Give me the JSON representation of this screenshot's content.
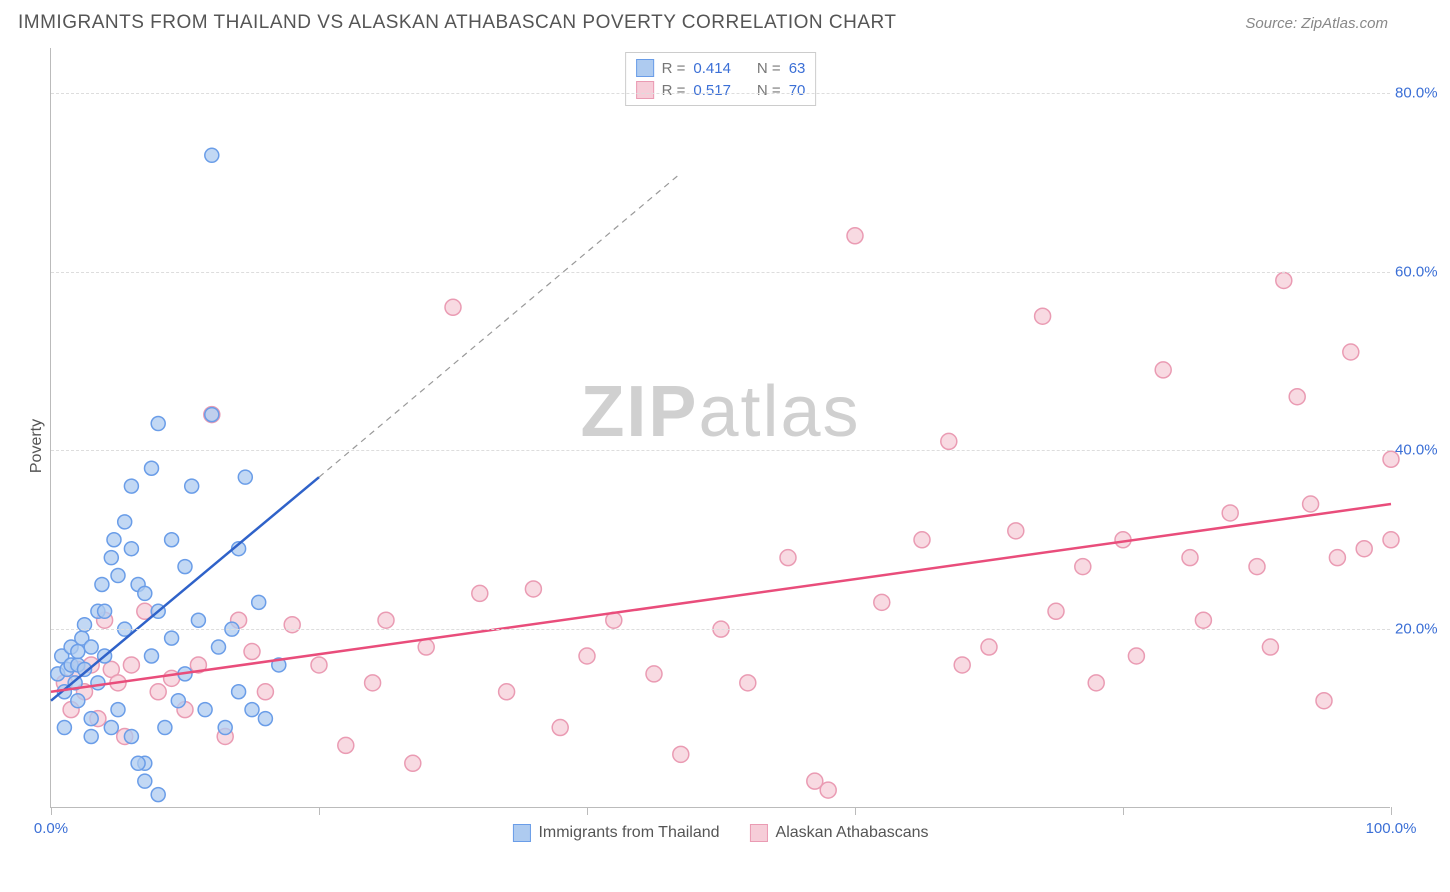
{
  "header": {
    "title": "IMMIGRANTS FROM THAILAND VS ALASKAN ATHABASCAN POVERTY CORRELATION CHART",
    "source_prefix": "Source: ",
    "source_name": "ZipAtlas.com"
  },
  "chart": {
    "type": "scatter",
    "ylabel": "Poverty",
    "watermark": "ZIPatlas",
    "background_color": "#ffffff",
    "grid_color": "#dddddd",
    "axis_color": "#bbbbbb",
    "xlim": [
      0,
      100
    ],
    "ylim": [
      0,
      85
    ],
    "xticks": [
      0,
      20,
      40,
      60,
      80,
      100
    ],
    "xtick_labels": {
      "0": "0.0%",
      "100": "100.0%"
    },
    "yticks": [
      20,
      40,
      60,
      80
    ],
    "ytick_labels": {
      "20": "20.0%",
      "40": "40.0%",
      "60": "60.0%",
      "80": "80.0%"
    },
    "series": [
      {
        "name": "Immigrants from Thailand",
        "color_fill": "#aecbf0",
        "color_stroke": "#6a9de8",
        "trend_color": "#2f62c9",
        "R": "0.414",
        "N": "63",
        "marker_radius": 7,
        "trend": {
          "x1": 0,
          "y1": 12,
          "x2": 20,
          "y2": 37,
          "ext_x2": 47,
          "ext_y2": 71
        },
        "points": [
          [
            0.5,
            15
          ],
          [
            0.8,
            17
          ],
          [
            1,
            13
          ],
          [
            1,
            9
          ],
          [
            1.2,
            15.5
          ],
          [
            1.5,
            16
          ],
          [
            1.5,
            18
          ],
          [
            1.8,
            14
          ],
          [
            2,
            16
          ],
          [
            2,
            17.5
          ],
          [
            2,
            12
          ],
          [
            2.3,
            19
          ],
          [
            2.5,
            15.5
          ],
          [
            2.5,
            20.5
          ],
          [
            3,
            10
          ],
          [
            3,
            8
          ],
          [
            3,
            18
          ],
          [
            3.5,
            22
          ],
          [
            3.5,
            14
          ],
          [
            3.8,
            25
          ],
          [
            4,
            22
          ],
          [
            4,
            17
          ],
          [
            4.5,
            28
          ],
          [
            4.5,
            9
          ],
          [
            4.7,
            30
          ],
          [
            5,
            26
          ],
          [
            5,
            11
          ],
          [
            5.5,
            20
          ],
          [
            5.5,
            32
          ],
          [
            6,
            36
          ],
          [
            6,
            29
          ],
          [
            6,
            8
          ],
          [
            6.5,
            25
          ],
          [
            7,
            24
          ],
          [
            7,
            5
          ],
          [
            7.5,
            38
          ],
          [
            7.5,
            17
          ],
          [
            8,
            43
          ],
          [
            8,
            22
          ],
          [
            8.5,
            9
          ],
          [
            9,
            19
          ],
          [
            9,
            30
          ],
          [
            9.5,
            12
          ],
          [
            10,
            27
          ],
          [
            10,
            15
          ],
          [
            10.5,
            36
          ],
          [
            11,
            21
          ],
          [
            11.5,
            11
          ],
          [
            12,
            44
          ],
          [
            12,
            73
          ],
          [
            12.5,
            18
          ],
          [
            13,
            9
          ],
          [
            13.5,
            20
          ],
          [
            14,
            29
          ],
          [
            14,
            13
          ],
          [
            14.5,
            37
          ],
          [
            15,
            11
          ],
          [
            15.5,
            23
          ],
          [
            16,
            10
          ],
          [
            17,
            16
          ],
          [
            7,
            3
          ],
          [
            8,
            1.5
          ],
          [
            6.5,
            5
          ]
        ]
      },
      {
        "name": "Alaskan Athabascans",
        "color_fill": "#f6cdd8",
        "color_stroke": "#ea9bb3",
        "trend_color": "#e94d7b",
        "R": "0.517",
        "N": "70",
        "marker_radius": 8,
        "trend": {
          "x1": 0,
          "y1": 13,
          "x2": 100,
          "y2": 34
        },
        "points": [
          [
            1,
            14
          ],
          [
            1.5,
            11
          ],
          [
            2,
            15.5
          ],
          [
            2.5,
            13
          ],
          [
            3,
            16
          ],
          [
            3.5,
            10
          ],
          [
            4,
            21
          ],
          [
            4.5,
            15.5
          ],
          [
            5,
            14
          ],
          [
            5.5,
            8
          ],
          [
            6,
            16
          ],
          [
            7,
            22
          ],
          [
            8,
            13
          ],
          [
            9,
            14.5
          ],
          [
            10,
            11
          ],
          [
            11,
            16
          ],
          [
            12,
            44
          ],
          [
            13,
            8
          ],
          [
            14,
            21
          ],
          [
            15,
            17.5
          ],
          [
            16,
            13
          ],
          [
            18,
            20.5
          ],
          [
            20,
            16
          ],
          [
            22,
            7
          ],
          [
            24,
            14
          ],
          [
            25,
            21
          ],
          [
            27,
            5
          ],
          [
            28,
            18
          ],
          [
            30,
            56
          ],
          [
            32,
            24
          ],
          [
            34,
            13
          ],
          [
            36,
            24.5
          ],
          [
            38,
            9
          ],
          [
            40,
            17
          ],
          [
            42,
            21
          ],
          [
            45,
            15
          ],
          [
            47,
            6
          ],
          [
            50,
            20
          ],
          [
            52,
            14
          ],
          [
            55,
            28
          ],
          [
            57,
            3
          ],
          [
            58,
            2
          ],
          [
            60,
            64
          ],
          [
            62,
            23
          ],
          [
            65,
            30
          ],
          [
            67,
            41
          ],
          [
            68,
            16
          ],
          [
            70,
            18
          ],
          [
            72,
            31
          ],
          [
            74,
            55
          ],
          [
            75,
            22
          ],
          [
            77,
            27
          ],
          [
            78,
            14
          ],
          [
            80,
            30
          ],
          [
            81,
            17
          ],
          [
            83,
            49
          ],
          [
            85,
            28
          ],
          [
            86,
            21
          ],
          [
            88,
            33
          ],
          [
            90,
            27
          ],
          [
            91,
            18
          ],
          [
            92,
            59
          ],
          [
            93,
            46
          ],
          [
            94,
            34
          ],
          [
            95,
            12
          ],
          [
            96,
            28
          ],
          [
            97,
            51
          ],
          [
            98,
            29
          ],
          [
            100,
            39
          ],
          [
            100,
            30
          ]
        ]
      }
    ],
    "legend_top": {
      "R_label": "R =",
      "N_label": "N ="
    }
  }
}
